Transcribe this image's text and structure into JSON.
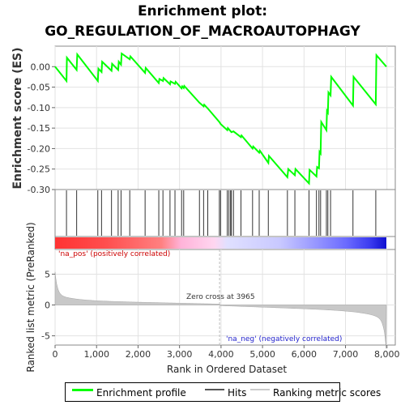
{
  "chart_data": {
    "type": "line",
    "title_line1": "Enrichment plot:",
    "title_line2": "GO_REGULATION_OF_MACROAUTOPHAGY",
    "es_panel": {
      "ylabel": "Enrichment score (ES)",
      "ylim": [
        -0.3,
        0.05
      ],
      "y_ticks": [
        0.0,
        -0.05,
        -0.1,
        -0.15,
        -0.2,
        -0.25,
        -0.3
      ],
      "y_tick_labels": [
        "0.00",
        "-0.05",
        "-0.10",
        "-0.15",
        "-0.20",
        "-0.25",
        "-0.30"
      ],
      "color": "#00ff00",
      "series": {
        "name": "Enrichment profile",
        "points": [
          [
            0,
            0.0
          ],
          [
            275,
            -0.035
          ],
          [
            285,
            0.022
          ],
          [
            520,
            -0.008
          ],
          [
            535,
            0.03
          ],
          [
            1030,
            -0.035
          ],
          [
            1045,
            -0.005
          ],
          [
            1120,
            -0.013
          ],
          [
            1135,
            0.012
          ],
          [
            1360,
            -0.01
          ],
          [
            1375,
            0.007
          ],
          [
            1520,
            -0.008
          ],
          [
            1535,
            0.012
          ],
          [
            1590,
            0.005
          ],
          [
            1605,
            0.032
          ],
          [
            1800,
            0.018
          ],
          [
            1815,
            0.025
          ],
          [
            2170,
            -0.015
          ],
          [
            2185,
            -0.003
          ],
          [
            2500,
            -0.04
          ],
          [
            2515,
            -0.03
          ],
          [
            2600,
            -0.035
          ],
          [
            2615,
            -0.028
          ],
          [
            2770,
            -0.043
          ],
          [
            2785,
            -0.036
          ],
          [
            2890,
            -0.042
          ],
          [
            2905,
            -0.037
          ],
          [
            3050,
            -0.053
          ],
          [
            3065,
            -0.048
          ],
          [
            3100,
            -0.052
          ],
          [
            3115,
            -0.047
          ],
          [
            3480,
            -0.088
          ],
          [
            3580,
            -0.097
          ],
          [
            3595,
            -0.093
          ],
          [
            3680,
            -0.102
          ],
          [
            3960,
            -0.135
          ],
          [
            3990,
            -0.14
          ],
          [
            4150,
            -0.155
          ],
          [
            4165,
            -0.15
          ],
          [
            4250,
            -0.16
          ],
          [
            4300,
            -0.158
          ],
          [
            4480,
            -0.172
          ],
          [
            4495,
            -0.168
          ],
          [
            4760,
            -0.2
          ],
          [
            4775,
            -0.195
          ],
          [
            4920,
            -0.21
          ],
          [
            4935,
            -0.205
          ],
          [
            5140,
            -0.235
          ],
          [
            5155,
            -0.218
          ],
          [
            5600,
            -0.27
          ],
          [
            5620,
            -0.25
          ],
          [
            5780,
            -0.265
          ],
          [
            5795,
            -0.25
          ],
          [
            6120,
            -0.285
          ],
          [
            6135,
            -0.252
          ],
          [
            6300,
            -0.268
          ],
          [
            6315,
            -0.245
          ],
          [
            6360,
            -0.248
          ],
          [
            6375,
            -0.208
          ],
          [
            6400,
            -0.212
          ],
          [
            6415,
            -0.135
          ],
          [
            6540,
            -0.155
          ],
          [
            6555,
            -0.108
          ],
          [
            6575,
            -0.112
          ],
          [
            6590,
            -0.063
          ],
          [
            6640,
            -0.07
          ],
          [
            6655,
            -0.025
          ],
          [
            7180,
            -0.095
          ],
          [
            7195,
            -0.025
          ],
          [
            7730,
            -0.092
          ],
          [
            7745,
            0.028
          ],
          [
            7985,
            0.0
          ]
        ]
      }
    },
    "hits_positions": [
      275,
      520,
      1030,
      1120,
      1360,
      1520,
      1590,
      1800,
      2170,
      2500,
      2600,
      2770,
      2890,
      3050,
      3100,
      3480,
      3580,
      3680,
      3960,
      3990,
      4150,
      4190,
      4230,
      4250,
      4300,
      4480,
      4760,
      4920,
      5140,
      5600,
      5780,
      6120,
      6300,
      6360,
      6400,
      6540,
      6575,
      6640,
      7180,
      7730
    ],
    "metric_panel": {
      "ylabel": "Ranked list metric (PreRanked)",
      "ylim": [
        -6.5,
        9
      ],
      "y_ticks": [
        5,
        0,
        -5
      ],
      "y_tick_labels": [
        "5",
        "0",
        "-5"
      ],
      "zero_cross_label": "Zero cross at 3965",
      "zero_cross": 3965,
      "pos_label": "'na_pos' (positively correlated)",
      "neg_label": "'na_neg' (negatively correlated)",
      "pos_color": "#ff0000",
      "neg_color": "#0000ff"
    },
    "xlabel": "Rank in Ordered Dataset",
    "xlim": [
      0,
      8200
    ],
    "x_ticks": [
      0,
      1000,
      2000,
      3000,
      4000,
      5000,
      6000,
      7000,
      8000
    ],
    "x_tick_labels": [
      "0",
      "1,000",
      "2,000",
      "3,000",
      "4,000",
      "5,000",
      "6,000",
      "7,000",
      "8,000"
    ],
    "n_genes": 7985,
    "legend": [
      {
        "label": "Enrichment profile",
        "color": "#00ff00"
      },
      {
        "label": "Hits",
        "color": "#555555"
      },
      {
        "label": "Ranking metric scores",
        "color": "#cccccc"
      }
    ]
  }
}
